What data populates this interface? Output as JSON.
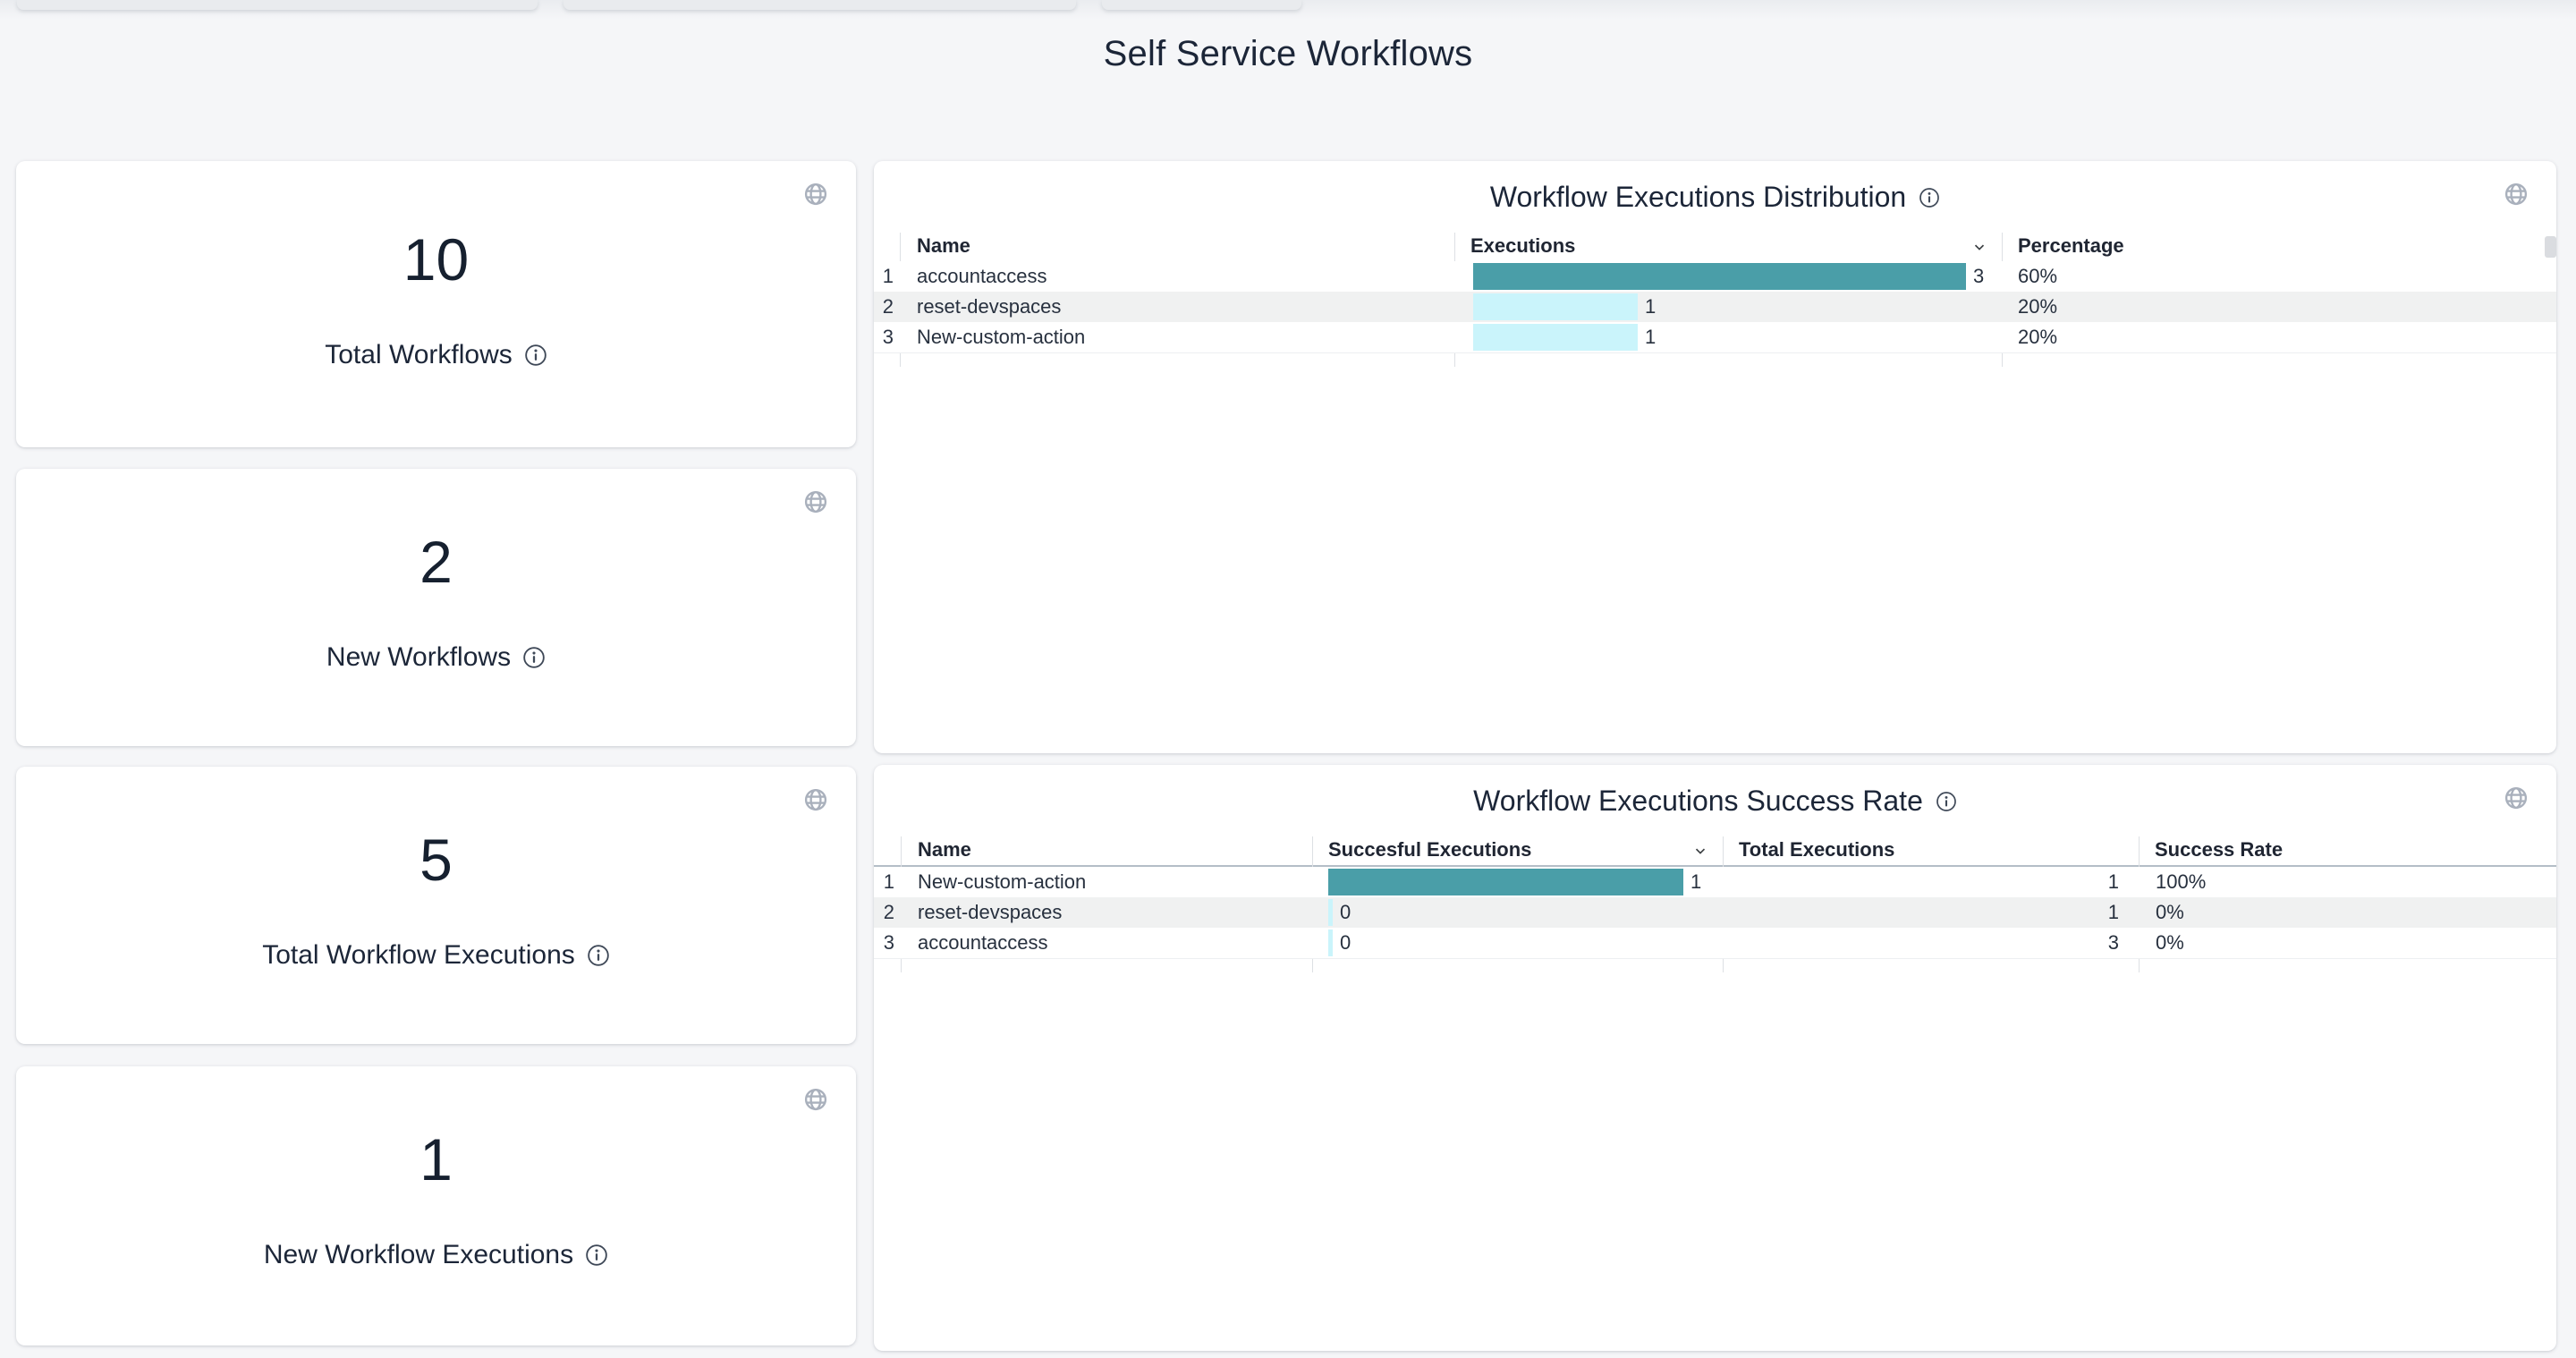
{
  "page": {
    "title": "Self Service Workflows"
  },
  "colors": {
    "background": "#F5F6F8",
    "accent_teal": "#4A9EA8",
    "accent_cyan": "#CAF4FB",
    "text_navy": "#1C2638",
    "row_stripe": "#F0F1F1",
    "icon_gray": "#A9B0BC"
  },
  "icons": {
    "card_action": "globe-icon",
    "label_suffix": "info-icon",
    "sort": "chevron-down-icon"
  },
  "stat_cards": [
    {
      "value": "10",
      "label": "Total Workflows"
    },
    {
      "value": "2",
      "label": "New Workflows"
    },
    {
      "value": "5",
      "label": "Total Workflow Executions"
    },
    {
      "value": "1",
      "label": "New Workflow Executions"
    }
  ],
  "distribution": {
    "title": "Workflow Executions Distribution",
    "headers": {
      "name": "Name",
      "executions": "Executions",
      "percentage": "Percentage"
    },
    "sorted_by": "Executions",
    "max": 3,
    "rows": [
      {
        "num": "1",
        "name": "accountaccess",
        "executions": 3,
        "executions_label": "3",
        "percentage": "60%"
      },
      {
        "num": "2",
        "name": "reset-devspaces",
        "executions": 1,
        "executions_label": "1",
        "percentage": "20%"
      },
      {
        "num": "3",
        "name": "New-custom-action",
        "executions": 1,
        "executions_label": "1",
        "percentage": "20%"
      }
    ]
  },
  "success": {
    "title": "Workflow Executions Success Rate",
    "headers": {
      "name": "Name",
      "successful": "Succesful Executions",
      "total": "Total Executions",
      "rate": "Success Rate"
    },
    "sorted_by": "Succesful Executions",
    "max": 1,
    "rows": [
      {
        "num": "1",
        "name": "New-custom-action",
        "successful": 1,
        "successful_label": "1",
        "total": "1",
        "rate": "100%"
      },
      {
        "num": "2",
        "name": "reset-devspaces",
        "successful": 0,
        "successful_label": "0",
        "total": "1",
        "rate": "0%"
      },
      {
        "num": "3",
        "name": "accountaccess",
        "successful": 0,
        "successful_label": "0",
        "total": "3",
        "rate": "0%"
      }
    ]
  }
}
